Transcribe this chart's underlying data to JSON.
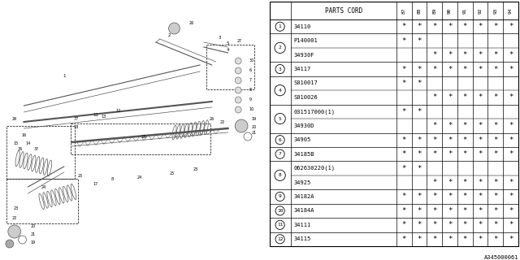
{
  "catalog_number": "A345000061",
  "header_cols": [
    "PARTS CORD",
    "87",
    "88",
    "89",
    "90",
    "91",
    "92",
    "93",
    "94"
  ],
  "rows": [
    {
      "num": "1",
      "code": "34110",
      "marks": [
        1,
        1,
        1,
        1,
        1,
        1,
        1,
        1
      ],
      "group_top": true,
      "group_only": true
    },
    {
      "num": "2",
      "code": "P140001",
      "marks": [
        1,
        1,
        0,
        0,
        0,
        0,
        0,
        0
      ],
      "group_top": true,
      "group_only": false
    },
    {
      "num": "2",
      "code": "34930F",
      "marks": [
        0,
        0,
        1,
        1,
        1,
        1,
        1,
        1
      ],
      "group_top": false,
      "group_only": false
    },
    {
      "num": "3",
      "code": "34117",
      "marks": [
        1,
        1,
        1,
        1,
        1,
        1,
        1,
        1
      ],
      "group_top": true,
      "group_only": true
    },
    {
      "num": "4",
      "code": "S010017",
      "marks": [
        1,
        1,
        0,
        0,
        0,
        0,
        0,
        0
      ],
      "group_top": true,
      "group_only": false
    },
    {
      "num": "4",
      "code": "S010026",
      "marks": [
        0,
        0,
        1,
        1,
        1,
        1,
        1,
        1
      ],
      "group_top": false,
      "group_only": false
    },
    {
      "num": "5",
      "code": "031517000(1)",
      "marks": [
        1,
        1,
        0,
        0,
        0,
        0,
        0,
        0
      ],
      "group_top": true,
      "group_only": false
    },
    {
      "num": "5",
      "code": "34930D",
      "marks": [
        0,
        0,
        1,
        1,
        1,
        1,
        1,
        1
      ],
      "group_top": false,
      "group_only": false
    },
    {
      "num": "6",
      "code": "34905",
      "marks": [
        1,
        1,
        1,
        1,
        1,
        1,
        1,
        1
      ],
      "group_top": true,
      "group_only": true
    },
    {
      "num": "7",
      "code": "34185B",
      "marks": [
        1,
        1,
        1,
        1,
        1,
        1,
        1,
        1
      ],
      "group_top": true,
      "group_only": true
    },
    {
      "num": "8",
      "code": "062630220(1)",
      "marks": [
        1,
        1,
        0,
        0,
        0,
        0,
        0,
        0
      ],
      "group_top": true,
      "group_only": false
    },
    {
      "num": "8",
      "code": "34925",
      "marks": [
        0,
        0,
        1,
        1,
        1,
        1,
        1,
        1
      ],
      "group_top": false,
      "group_only": false
    },
    {
      "num": "9",
      "code": "34182A",
      "marks": [
        1,
        1,
        1,
        1,
        1,
        1,
        1,
        1
      ],
      "group_top": true,
      "group_only": true
    },
    {
      "num": "10",
      "code": "34184A",
      "marks": [
        1,
        1,
        1,
        1,
        1,
        1,
        1,
        1
      ],
      "group_top": true,
      "group_only": true
    },
    {
      "num": "11",
      "code": "34111",
      "marks": [
        1,
        1,
        1,
        1,
        1,
        1,
        1,
        1
      ],
      "group_top": true,
      "group_only": true
    },
    {
      "num": "12",
      "code": "34115",
      "marks": [
        1,
        1,
        1,
        1,
        1,
        1,
        1,
        1
      ],
      "group_top": true,
      "group_only": true
    }
  ],
  "bg_color": "#ffffff"
}
